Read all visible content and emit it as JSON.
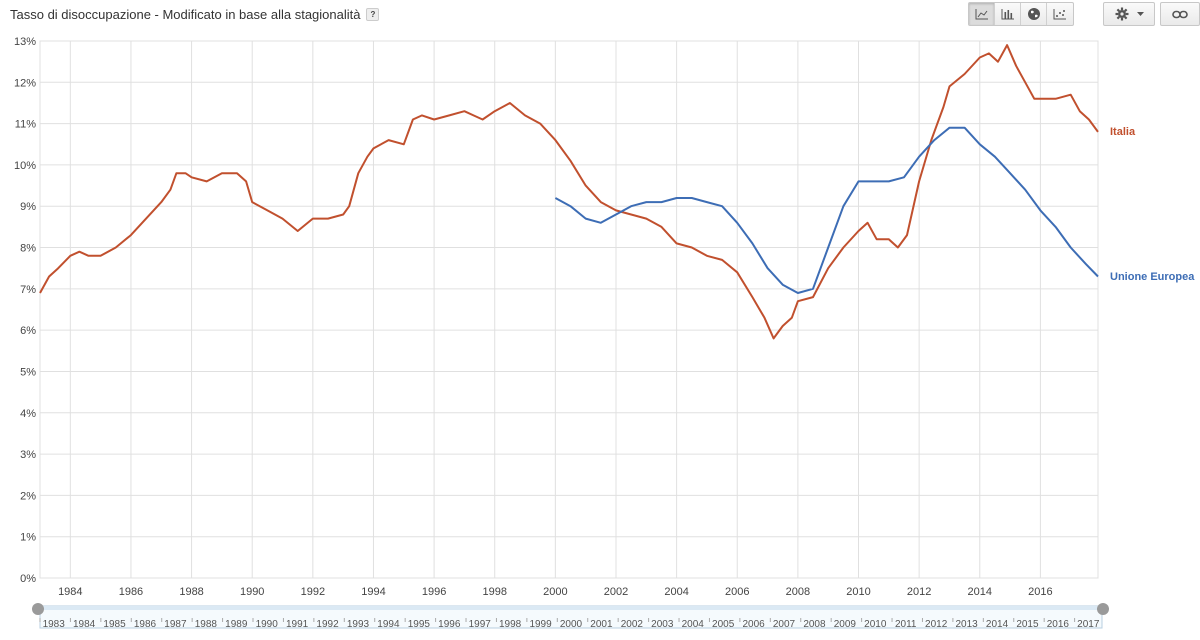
{
  "header": {
    "title": "Tasso di disoccupazione - Modificato in base alla stagionalità",
    "help_label": "?"
  },
  "toolbar": {
    "buttons": [
      {
        "icon": "line-chart-icon",
        "active": true
      },
      {
        "icon": "bar-chart-icon",
        "active": false
      },
      {
        "icon": "globe-icon",
        "active": false
      },
      {
        "icon": "scatter-chart-icon",
        "active": false
      }
    ],
    "settings_icon": "gear-icon",
    "dropdown_icon": "chevron-down-icon",
    "link_icon": "link-icon"
  },
  "colors": {
    "italia": "#c1502e",
    "unione_europea": "#3d6db5",
    "grid": "#e0e0e0",
    "axis_text": "#444444"
  },
  "chart_data": {
    "type": "line",
    "title": "Tasso di disoccupazione - Modificato in base alla stagionalità",
    "xlabel": "",
    "ylabel": "",
    "xlim": [
      1983.0,
      2017.9
    ],
    "ylim": [
      0,
      13
    ],
    "y_ticks": [
      "0%",
      "1%",
      "2%",
      "3%",
      "4%",
      "5%",
      "6%",
      "7%",
      "8%",
      "9%",
      "10%",
      "11%",
      "12%",
      "13%"
    ],
    "x_ticks": [
      "1984",
      "1986",
      "1988",
      "1990",
      "1992",
      "1994",
      "1996",
      "1998",
      "2000",
      "2002",
      "2004",
      "2006",
      "2008",
      "2010",
      "2012",
      "2014",
      "2016"
    ],
    "grid": true,
    "legend": "right, at line ends",
    "series": [
      {
        "name": "Italia",
        "points": [
          [
            1983.0,
            6.9
          ],
          [
            1983.3,
            7.3
          ],
          [
            1983.6,
            7.5
          ],
          [
            1984.0,
            7.8
          ],
          [
            1984.3,
            7.9
          ],
          [
            1984.6,
            7.8
          ],
          [
            1985.0,
            7.8
          ],
          [
            1985.5,
            8.0
          ],
          [
            1986.0,
            8.3
          ],
          [
            1986.5,
            8.7
          ],
          [
            1987.0,
            9.1
          ],
          [
            1987.3,
            9.4
          ],
          [
            1987.5,
            9.8
          ],
          [
            1987.8,
            9.8
          ],
          [
            1988.0,
            9.7
          ],
          [
            1988.5,
            9.6
          ],
          [
            1989.0,
            9.8
          ],
          [
            1989.5,
            9.8
          ],
          [
            1989.8,
            9.6
          ],
          [
            1990.0,
            9.1
          ],
          [
            1990.5,
            8.9
          ],
          [
            1991.0,
            8.7
          ],
          [
            1991.5,
            8.4
          ],
          [
            1992.0,
            8.7
          ],
          [
            1992.5,
            8.7
          ],
          [
            1993.0,
            8.8
          ],
          [
            1993.2,
            9.0
          ],
          [
            1993.5,
            9.8
          ],
          [
            1993.8,
            10.2
          ],
          [
            1994.0,
            10.4
          ],
          [
            1994.5,
            10.6
          ],
          [
            1995.0,
            10.5
          ],
          [
            1995.3,
            11.1
          ],
          [
            1995.6,
            11.2
          ],
          [
            1996.0,
            11.1
          ],
          [
            1996.5,
            11.2
          ],
          [
            1997.0,
            11.3
          ],
          [
            1997.3,
            11.2
          ],
          [
            1997.6,
            11.1
          ],
          [
            1998.0,
            11.3
          ],
          [
            1998.5,
            11.5
          ],
          [
            1999.0,
            11.2
          ],
          [
            1999.5,
            11.0
          ],
          [
            2000.0,
            10.6
          ],
          [
            2000.5,
            10.1
          ],
          [
            2001.0,
            9.5
          ],
          [
            2001.5,
            9.1
          ],
          [
            2002.0,
            8.9
          ],
          [
            2002.5,
            8.8
          ],
          [
            2003.0,
            8.7
          ],
          [
            2003.5,
            8.5
          ],
          [
            2004.0,
            8.1
          ],
          [
            2004.5,
            8.0
          ],
          [
            2005.0,
            7.8
          ],
          [
            2005.5,
            7.7
          ],
          [
            2006.0,
            7.4
          ],
          [
            2006.5,
            6.8
          ],
          [
            2006.9,
            6.3
          ],
          [
            2007.2,
            5.8
          ],
          [
            2007.5,
            6.1
          ],
          [
            2007.8,
            6.3
          ],
          [
            2008.0,
            6.7
          ],
          [
            2008.5,
            6.8
          ],
          [
            2009.0,
            7.5
          ],
          [
            2009.5,
            8.0
          ],
          [
            2010.0,
            8.4
          ],
          [
            2010.3,
            8.6
          ],
          [
            2010.6,
            8.2
          ],
          [
            2011.0,
            8.2
          ],
          [
            2011.3,
            8.0
          ],
          [
            2011.6,
            8.3
          ],
          [
            2012.0,
            9.6
          ],
          [
            2012.4,
            10.6
          ],
          [
            2012.8,
            11.4
          ],
          [
            2013.0,
            11.9
          ],
          [
            2013.5,
            12.2
          ],
          [
            2014.0,
            12.6
          ],
          [
            2014.3,
            12.7
          ],
          [
            2014.6,
            12.5
          ],
          [
            2014.9,
            12.9
          ],
          [
            2015.2,
            12.4
          ],
          [
            2015.5,
            12.0
          ],
          [
            2015.8,
            11.6
          ],
          [
            2016.0,
            11.6
          ],
          [
            2016.5,
            11.6
          ],
          [
            2017.0,
            11.7
          ],
          [
            2017.3,
            11.3
          ],
          [
            2017.6,
            11.1
          ],
          [
            2017.9,
            10.8
          ]
        ]
      },
      {
        "name": "Unione Europea",
        "points": [
          [
            2000.0,
            9.2
          ],
          [
            2000.5,
            9.0
          ],
          [
            2001.0,
            8.7
          ],
          [
            2001.5,
            8.6
          ],
          [
            2002.0,
            8.8
          ],
          [
            2002.5,
            9.0
          ],
          [
            2003.0,
            9.1
          ],
          [
            2003.5,
            9.1
          ],
          [
            2004.0,
            9.2
          ],
          [
            2004.5,
            9.2
          ],
          [
            2005.0,
            9.1
          ],
          [
            2005.5,
            9.0
          ],
          [
            2006.0,
            8.6
          ],
          [
            2006.5,
            8.1
          ],
          [
            2007.0,
            7.5
          ],
          [
            2007.5,
            7.1
          ],
          [
            2008.0,
            6.9
          ],
          [
            2008.5,
            7.0
          ],
          [
            2009.0,
            8.0
          ],
          [
            2009.5,
            9.0
          ],
          [
            2010.0,
            9.6
          ],
          [
            2010.5,
            9.6
          ],
          [
            2011.0,
            9.6
          ],
          [
            2011.5,
            9.7
          ],
          [
            2012.0,
            10.2
          ],
          [
            2012.5,
            10.6
          ],
          [
            2013.0,
            10.9
          ],
          [
            2013.5,
            10.9
          ],
          [
            2014.0,
            10.5
          ],
          [
            2014.5,
            10.2
          ],
          [
            2015.0,
            9.8
          ],
          [
            2015.5,
            9.4
          ],
          [
            2016.0,
            8.9
          ],
          [
            2016.5,
            8.5
          ],
          [
            2017.0,
            8.0
          ],
          [
            2017.5,
            7.6
          ],
          [
            2017.9,
            7.3
          ]
        ]
      }
    ],
    "navigator": {
      "labels": [
        "1983",
        "1984",
        "1985",
        "1986",
        "1987",
        "1988",
        "1989",
        "1990",
        "1991",
        "1992",
        "1993",
        "1994",
        "1995",
        "1996",
        "1997",
        "1998",
        "1999",
        "2000",
        "2001",
        "2002",
        "2003",
        "2004",
        "2005",
        "2006",
        "2007",
        "2008",
        "2009",
        "2010",
        "2011",
        "2012",
        "2013",
        "2014",
        "2015",
        "2016",
        "2017"
      ],
      "range": [
        1983.0,
        2017.9
      ]
    }
  }
}
